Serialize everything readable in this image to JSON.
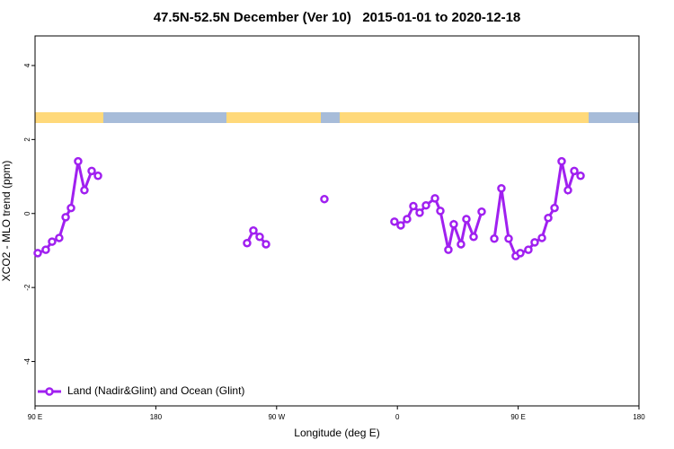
{
  "chart_data": {
    "type": "line",
    "title": "47.5N-52.5N December (Ver 10)   2015-01-01 to 2020-12-18",
    "x_label": "Longitude (deg E)",
    "y_label": "XCO2 - MLO trend (ppm)",
    "xlim": [
      90,
      540
    ],
    "xticks": [
      {
        "value": 90,
        "label": "90 E"
      },
      180,
      {
        "value": 270,
        "label": "90 W"
      },
      {
        "value": 360,
        "label": "0"
      },
      {
        "value": 450,
        "label": "90 E"
      },
      {
        "value": 540,
        "label": "180"
      }
    ],
    "ylim": [
      -5.2,
      4.8
    ],
    "yticks": [
      -4,
      -2,
      0,
      2,
      4
    ],
    "legend": "lower left",
    "series": [
      {
        "name": "Land (Nadir&Glint) and Ocean (Glint)",
        "color": "#a020f0",
        "x": [
          92,
          98,
          102.7,
          108,
          112.8,
          116.8,
          122.1,
          126.8,
          132.2,
          136.9,
          null,
          248,
          252.7,
          257.4,
          262.1,
          null,
          305.6,
          null,
          357.8,
          362.5,
          367.2,
          371.9,
          376.6,
          381.3,
          388,
          392,
          398,
          402,
          407.4,
          411.4,
          416.8,
          422.8,
          null,
          432.2,
          437.5,
          442.9,
          448.2,
          451.6,
          457.6,
          462.3,
          467.7,
          472.4,
          477.1,
          482.4,
          487.1,
          491.8,
          496.5
        ],
        "values": [
          -1.07,
          -0.98,
          -0.76,
          -0.66,
          -0.1,
          0.15,
          1.41,
          0.63,
          1.15,
          1.02,
          null,
          -0.8,
          -0.46,
          -0.63,
          -0.83,
          null,
          0.39,
          null,
          -0.22,
          -0.32,
          -0.15,
          0.2,
          0.02,
          0.22,
          0.41,
          0.07,
          -0.98,
          -0.29,
          -0.83,
          -0.15,
          -0.63,
          0.05,
          null,
          -0.68,
          0.68,
          -0.68,
          -1.15,
          -1.07,
          -0.98,
          -0.78,
          -0.66,
          -0.12,
          0.15,
          1.41,
          0.63,
          1.15,
          1.02
        ]
      }
    ]
  }
}
